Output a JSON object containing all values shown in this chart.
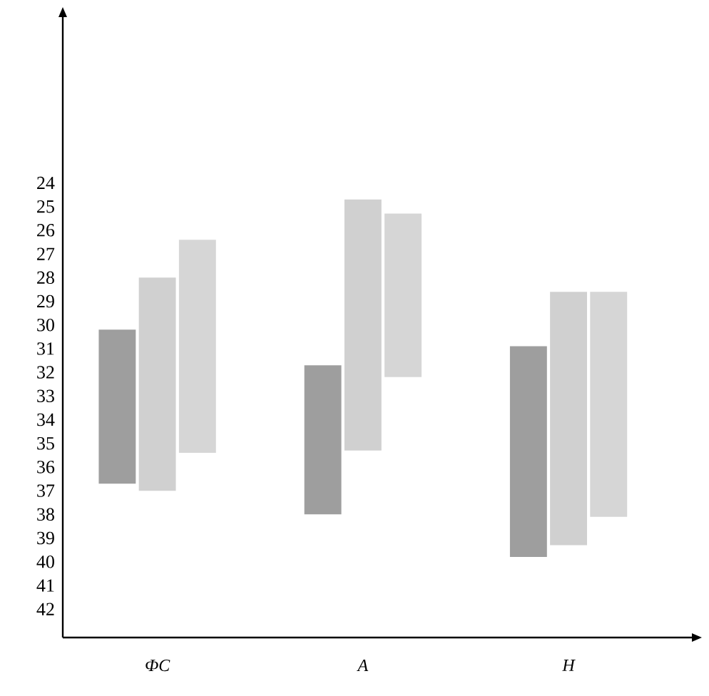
{
  "chart_data": {
    "type": "bar",
    "categories": [
      "ФС",
      "А",
      "Н"
    ],
    "series": [
      {
        "color": "#9e9e9e",
        "base": [
          30.2,
          31.7,
          30.9
        ],
        "values": [
          6.5,
          6.3,
          8.9
        ]
      },
      {
        "color": "#d0d0d0",
        "base": [
          28.0,
          24.7,
          28.6
        ],
        "values": [
          9.0,
          10.6,
          10.7
        ]
      },
      {
        "color": "#d6d6d6",
        "base": [
          26.4,
          25.3,
          28.6
        ],
        "values": [
          9.0,
          6.9,
          9.5
        ]
      }
    ],
    "ylim": [
      43.2,
      17
    ],
    "yticks": [
      24,
      25,
      26,
      27,
      28,
      29,
      30,
      31,
      32,
      33,
      34,
      35,
      36,
      37,
      38,
      39,
      40,
      41,
      42
    ]
  }
}
